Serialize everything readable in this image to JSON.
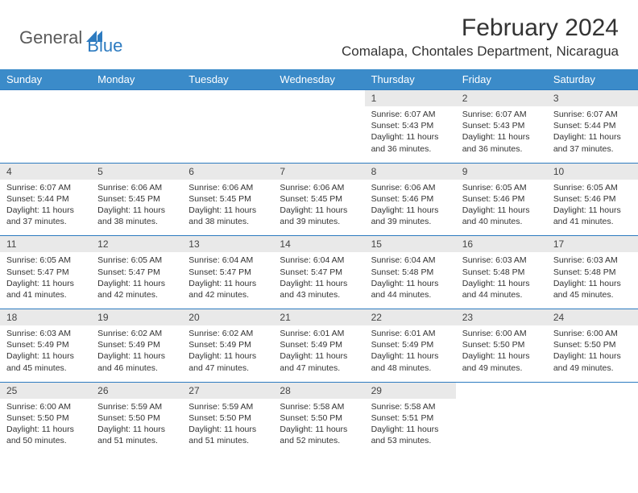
{
  "logo": {
    "text1": "General",
    "text2": "Blue",
    "icon_color": "#2d7bc0"
  },
  "title": "February 2024",
  "location": "Comalapa, Chontales Department, Nicaragua",
  "colors": {
    "header_bg": "#3b8bc9",
    "header_text": "#ffffff",
    "daynum_bg": "#e9e9e9",
    "accent_border": "#2d7bc0",
    "logo_gray": "#5a5a5a",
    "logo_blue": "#2d7bc0"
  },
  "day_names": [
    "Sunday",
    "Monday",
    "Tuesday",
    "Wednesday",
    "Thursday",
    "Friday",
    "Saturday"
  ],
  "weeks": [
    {
      "days": [
        {
          "num": "",
          "detail": ""
        },
        {
          "num": "",
          "detail": ""
        },
        {
          "num": "",
          "detail": ""
        },
        {
          "num": "",
          "detail": ""
        },
        {
          "num": "1",
          "detail": "Sunrise: 6:07 AM\nSunset: 5:43 PM\nDaylight: 11 hours and 36 minutes."
        },
        {
          "num": "2",
          "detail": "Sunrise: 6:07 AM\nSunset: 5:43 PM\nDaylight: 11 hours and 36 minutes."
        },
        {
          "num": "3",
          "detail": "Sunrise: 6:07 AM\nSunset: 5:44 PM\nDaylight: 11 hours and 37 minutes."
        }
      ]
    },
    {
      "days": [
        {
          "num": "4",
          "detail": "Sunrise: 6:07 AM\nSunset: 5:44 PM\nDaylight: 11 hours and 37 minutes."
        },
        {
          "num": "5",
          "detail": "Sunrise: 6:06 AM\nSunset: 5:45 PM\nDaylight: 11 hours and 38 minutes."
        },
        {
          "num": "6",
          "detail": "Sunrise: 6:06 AM\nSunset: 5:45 PM\nDaylight: 11 hours and 38 minutes."
        },
        {
          "num": "7",
          "detail": "Sunrise: 6:06 AM\nSunset: 5:45 PM\nDaylight: 11 hours and 39 minutes."
        },
        {
          "num": "8",
          "detail": "Sunrise: 6:06 AM\nSunset: 5:46 PM\nDaylight: 11 hours and 39 minutes."
        },
        {
          "num": "9",
          "detail": "Sunrise: 6:05 AM\nSunset: 5:46 PM\nDaylight: 11 hours and 40 minutes."
        },
        {
          "num": "10",
          "detail": "Sunrise: 6:05 AM\nSunset: 5:46 PM\nDaylight: 11 hours and 41 minutes."
        }
      ]
    },
    {
      "days": [
        {
          "num": "11",
          "detail": "Sunrise: 6:05 AM\nSunset: 5:47 PM\nDaylight: 11 hours and 41 minutes."
        },
        {
          "num": "12",
          "detail": "Sunrise: 6:05 AM\nSunset: 5:47 PM\nDaylight: 11 hours and 42 minutes."
        },
        {
          "num": "13",
          "detail": "Sunrise: 6:04 AM\nSunset: 5:47 PM\nDaylight: 11 hours and 42 minutes."
        },
        {
          "num": "14",
          "detail": "Sunrise: 6:04 AM\nSunset: 5:47 PM\nDaylight: 11 hours and 43 minutes."
        },
        {
          "num": "15",
          "detail": "Sunrise: 6:04 AM\nSunset: 5:48 PM\nDaylight: 11 hours and 44 minutes."
        },
        {
          "num": "16",
          "detail": "Sunrise: 6:03 AM\nSunset: 5:48 PM\nDaylight: 11 hours and 44 minutes."
        },
        {
          "num": "17",
          "detail": "Sunrise: 6:03 AM\nSunset: 5:48 PM\nDaylight: 11 hours and 45 minutes."
        }
      ]
    },
    {
      "days": [
        {
          "num": "18",
          "detail": "Sunrise: 6:03 AM\nSunset: 5:49 PM\nDaylight: 11 hours and 45 minutes."
        },
        {
          "num": "19",
          "detail": "Sunrise: 6:02 AM\nSunset: 5:49 PM\nDaylight: 11 hours and 46 minutes."
        },
        {
          "num": "20",
          "detail": "Sunrise: 6:02 AM\nSunset: 5:49 PM\nDaylight: 11 hours and 47 minutes."
        },
        {
          "num": "21",
          "detail": "Sunrise: 6:01 AM\nSunset: 5:49 PM\nDaylight: 11 hours and 47 minutes."
        },
        {
          "num": "22",
          "detail": "Sunrise: 6:01 AM\nSunset: 5:49 PM\nDaylight: 11 hours and 48 minutes."
        },
        {
          "num": "23",
          "detail": "Sunrise: 6:00 AM\nSunset: 5:50 PM\nDaylight: 11 hours and 49 minutes."
        },
        {
          "num": "24",
          "detail": "Sunrise: 6:00 AM\nSunset: 5:50 PM\nDaylight: 11 hours and 49 minutes."
        }
      ]
    },
    {
      "days": [
        {
          "num": "25",
          "detail": "Sunrise: 6:00 AM\nSunset: 5:50 PM\nDaylight: 11 hours and 50 minutes."
        },
        {
          "num": "26",
          "detail": "Sunrise: 5:59 AM\nSunset: 5:50 PM\nDaylight: 11 hours and 51 minutes."
        },
        {
          "num": "27",
          "detail": "Sunrise: 5:59 AM\nSunset: 5:50 PM\nDaylight: 11 hours and 51 minutes."
        },
        {
          "num": "28",
          "detail": "Sunrise: 5:58 AM\nSunset: 5:50 PM\nDaylight: 11 hours and 52 minutes."
        },
        {
          "num": "29",
          "detail": "Sunrise: 5:58 AM\nSunset: 5:51 PM\nDaylight: 11 hours and 53 minutes."
        },
        {
          "num": "",
          "detail": ""
        },
        {
          "num": "",
          "detail": ""
        }
      ]
    }
  ]
}
